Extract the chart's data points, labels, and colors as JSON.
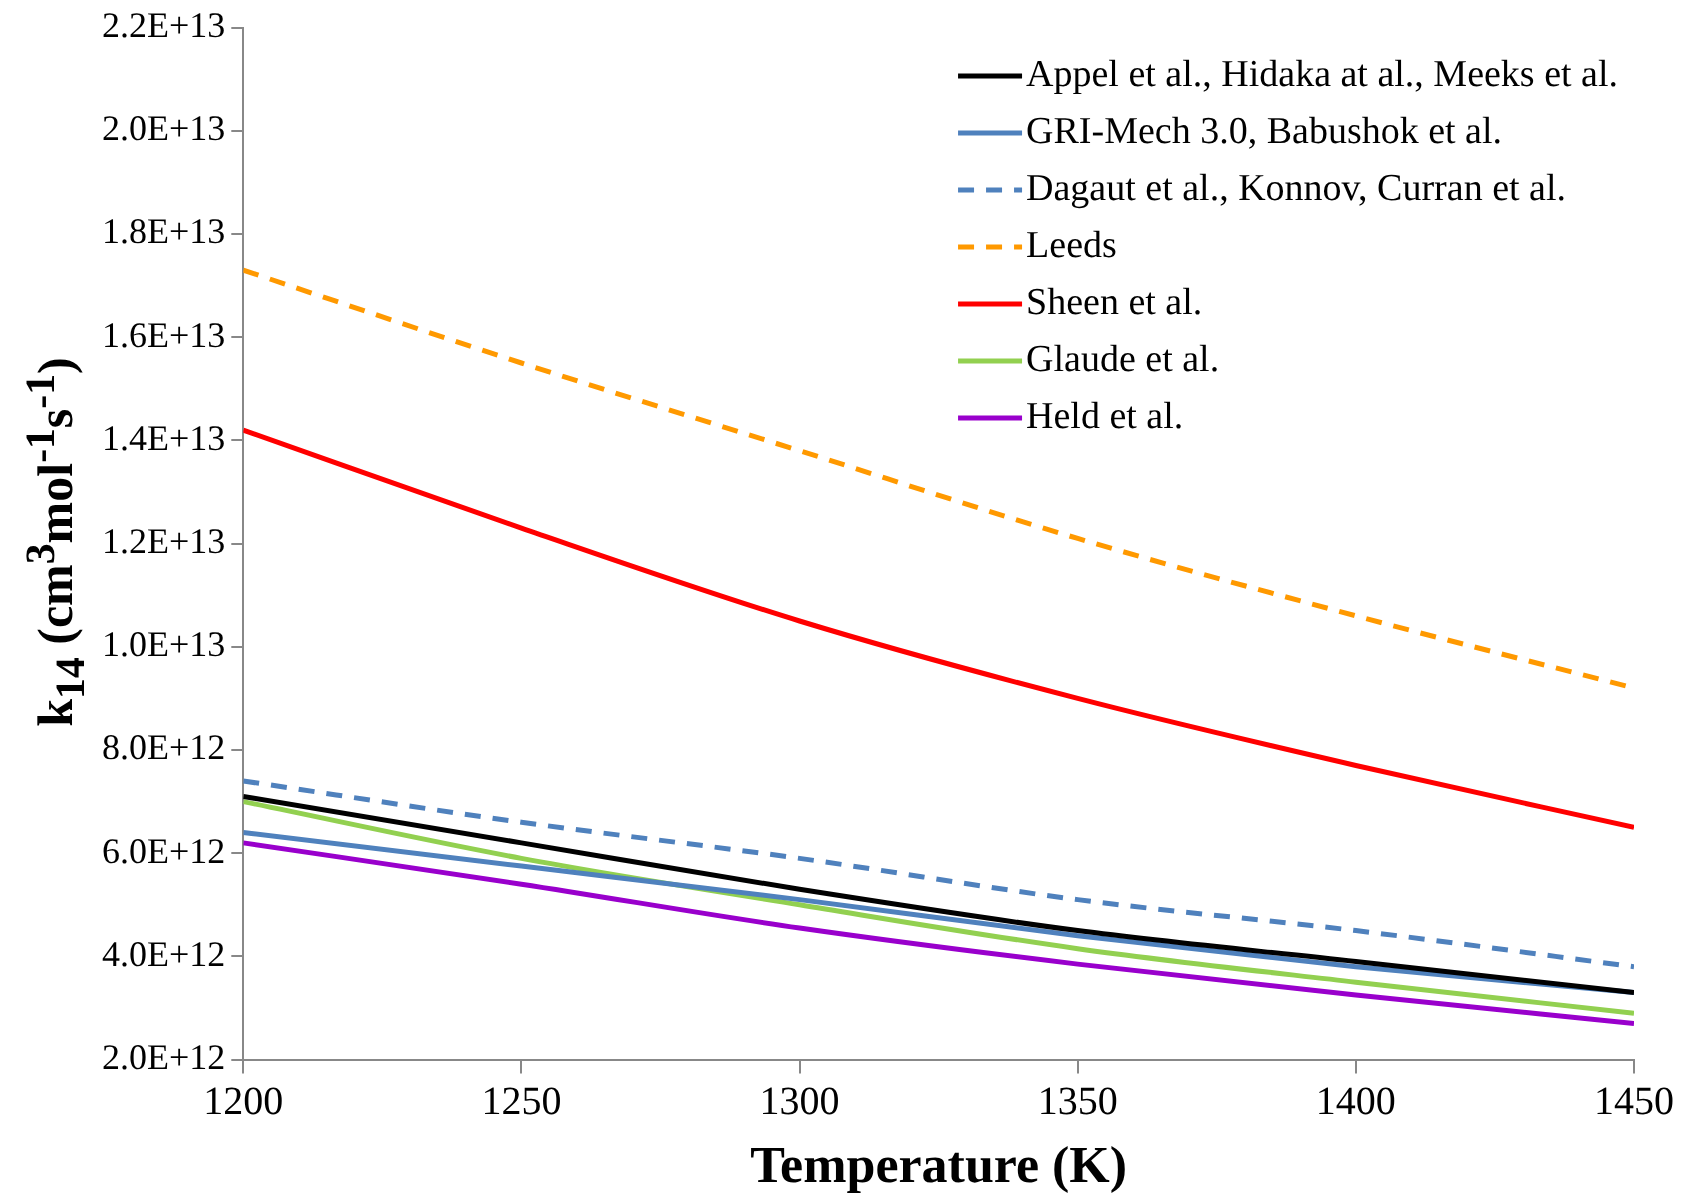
{
  "chart_data": {
    "type": "line",
    "xlabel": "Temperature (K)",
    "ylabel": "k$_{14}$ (cm$^{3}$mol$^{-1}$s$^{-1}$)",
    "x": [
      1200,
      1250,
      1300,
      1350,
      1400,
      1450
    ],
    "xlim": [
      1200,
      1450
    ],
    "xticks": [
      1200,
      1250,
      1300,
      1350,
      1400,
      1450
    ],
    "ylim": [
      2000000000000.0,
      22000000000000.0
    ],
    "yticks": [
      {
        "value": 2000000000000.0,
        "label": "2.0E+12"
      },
      {
        "value": 4000000000000.0,
        "label": "4.0E+12"
      },
      {
        "value": 6000000000000.0,
        "label": "6.0E+12"
      },
      {
        "value": 8000000000000.0,
        "label": "8.0E+12"
      },
      {
        "value": 10000000000000.0,
        "label": "1.0E+13"
      },
      {
        "value": 12000000000000.0,
        "label": "1.2E+13"
      },
      {
        "value": 14000000000000.0,
        "label": "1.4E+13"
      },
      {
        "value": 16000000000000.0,
        "label": "1.6E+13"
      },
      {
        "value": 18000000000000.0,
        "label": "1.8E+13"
      },
      {
        "value": 20000000000000.0,
        "label": "2.0E+13"
      },
      {
        "value": 22000000000000.0,
        "label": "2.2E+13"
      }
    ],
    "grid": false,
    "legend": "top right",
    "marker": "none",
    "series": [
      {
        "name": "Appel et al., Hidaka at al., Meeks et al.",
        "color": "#000000",
        "values": [
          7100000000000.0,
          6200000000000.0,
          5300000000000.0,
          4500000000000.0,
          3900000000000.0,
          3300000000000.0
        ]
      },
      {
        "name": "GRI-Mech 3.0, Babushok et al.",
        "color": "#4f81bd",
        "values": [
          6400000000000.0,
          5750000000000.0,
          5100000000000.0,
          4400000000000.0,
          3800000000000.0,
          3300000000000.0
        ]
      },
      {
        "name": "Dagaut et al., Konnov, Curran et al.",
        "color": "#4f81bd",
        "line_style": "dashed",
        "values": [
          7400000000000.0,
          6600000000000.0,
          5900000000000.0,
          5100000000000.0,
          4500000000000.0,
          3800000000000.0
        ]
      },
      {
        "name": "Leeds",
        "color": "#ff9900",
        "line_style": "dashed",
        "values": [
          17300000000000.0,
          15500000000000.0,
          13800000000000.0,
          12100000000000.0,
          10600000000000.0,
          9200000000000.0
        ]
      },
      {
        "name": "Sheen et al.",
        "color": "#ff0000",
        "values": [
          14200000000000.0,
          12300000000000.0,
          10500000000000.0,
          9000000000000.0,
          7700000000000.0,
          6500000000000.0
        ]
      },
      {
        "name": "Glaude et al.",
        "color": "#92d050",
        "values": [
          7000000000000.0,
          5900000000000.0,
          5000000000000.0,
          4150000000000.0,
          3500000000000.0,
          2900000000000.0
        ]
      },
      {
        "name": "Held et al.",
        "color": "#9900cc",
        "values": [
          6200000000000.0,
          5400000000000.0,
          4550000000000.0,
          3850000000000.0,
          3250000000000.0,
          2700000000000.0
        ]
      }
    ]
  }
}
